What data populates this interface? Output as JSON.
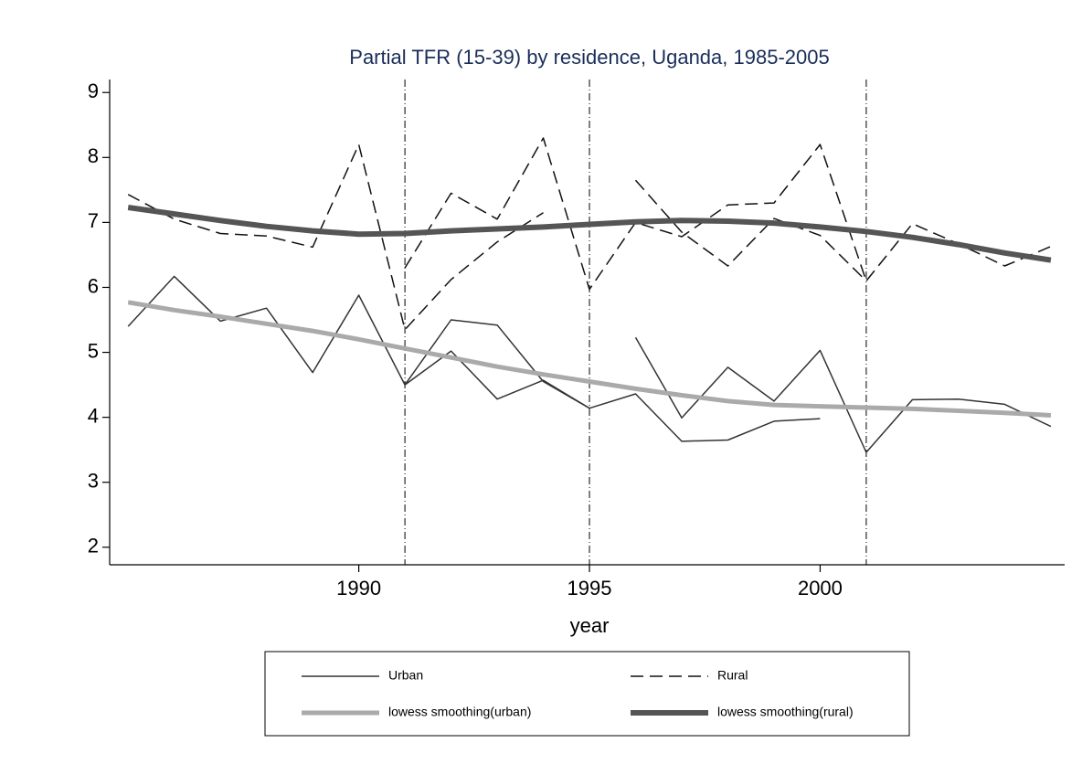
{
  "chart_data": {
    "type": "line",
    "title": "Partial TFR (15-39) by residence, Uganda, 1985-2005",
    "x_label": "year",
    "xlim": [
      1984.6,
      2005.3
    ],
    "xticks": [
      1990,
      1995,
      2000
    ],
    "ylim": [
      1.73,
      9.2
    ],
    "yticks": [
      2,
      3,
      4,
      5,
      6,
      7,
      8,
      9
    ],
    "reference_lines": [
      1991,
      1995,
      2001
    ],
    "series": [
      {
        "name": "Urban",
        "color": "#333333",
        "line_style": "solid",
        "width": 1.5,
        "x": [
          1985,
          1986,
          1987,
          1988,
          1989,
          1990,
          1991,
          1992,
          1993,
          1994,
          1995,
          null,
          1991,
          1992,
          1993,
          1994,
          1995,
          1996,
          1997,
          1998,
          1999,
          2000,
          null,
          1996,
          1997,
          1998,
          1999,
          2000,
          2001,
          2002,
          2003,
          2004,
          2005
        ],
        "values": [
          5.4,
          6.17,
          5.48,
          5.68,
          4.69,
          5.88,
          4.5,
          5.02,
          4.28,
          4.57,
          4.14,
          null,
          4.5,
          5.5,
          5.42,
          4.55,
          4.14,
          4.36,
          3.63,
          3.65,
          3.94,
          3.98,
          null,
          5.23,
          3.99,
          4.77,
          4.25,
          5.03,
          3.46,
          4.27,
          4.28,
          4.2,
          3.86
        ]
      },
      {
        "name": "Rural",
        "color": "#111111",
        "line_style": "dashed",
        "width": 1.5,
        "x": [
          1985,
          1986,
          1987,
          1988,
          1989,
          1990,
          1991,
          1992,
          1993,
          1994,
          null,
          1991,
          1992,
          1993,
          1994,
          1995,
          1996,
          1997,
          1998,
          1999,
          2000,
          2001,
          null,
          1996,
          1997,
          1998,
          1999,
          2000,
          2001,
          2002,
          2003,
          2004,
          2005
        ],
        "values": [
          7.43,
          7.05,
          6.83,
          6.79,
          6.62,
          8.2,
          5.35,
          6.12,
          6.7,
          7.15,
          null,
          6.3,
          7.45,
          7.05,
          8.3,
          5.97,
          7.0,
          6.78,
          7.27,
          7.3,
          8.2,
          6.1,
          null,
          7.65,
          6.85,
          6.33,
          7.06,
          6.8,
          6.1,
          6.98,
          6.67,
          6.33,
          6.63
        ]
      },
      {
        "name": "lowess smoothing(urban)",
        "color": "#aaaaaa",
        "line_style": "solid",
        "width": 5,
        "x": [
          1985,
          1986,
          1987,
          1988,
          1989,
          1990,
          1991,
          1992,
          1993,
          1994,
          1995,
          1996,
          1997,
          1998,
          1999,
          2000,
          2001,
          2002,
          2003,
          2004,
          2005
        ],
        "values": [
          5.77,
          5.65,
          5.55,
          5.44,
          5.33,
          5.2,
          5.06,
          4.92,
          4.78,
          4.66,
          4.55,
          4.44,
          4.34,
          4.25,
          4.19,
          4.17,
          4.15,
          4.13,
          4.1,
          4.07,
          4.03
        ]
      },
      {
        "name": "lowess smoothing(rural)",
        "color": "#555555",
        "line_style": "solid",
        "width": 6,
        "x": [
          1985,
          1986,
          1987,
          1988,
          1989,
          1990,
          1991,
          1992,
          1993,
          1994,
          1995,
          1996,
          1997,
          1998,
          1999,
          2000,
          2001,
          2002,
          2003,
          2004,
          2005
        ],
        "values": [
          7.23,
          7.13,
          7.03,
          6.94,
          6.87,
          6.82,
          6.83,
          6.87,
          6.9,
          6.93,
          6.97,
          7.01,
          7.03,
          7.02,
          6.99,
          6.93,
          6.86,
          6.77,
          6.66,
          6.53,
          6.42
        ]
      }
    ]
  }
}
